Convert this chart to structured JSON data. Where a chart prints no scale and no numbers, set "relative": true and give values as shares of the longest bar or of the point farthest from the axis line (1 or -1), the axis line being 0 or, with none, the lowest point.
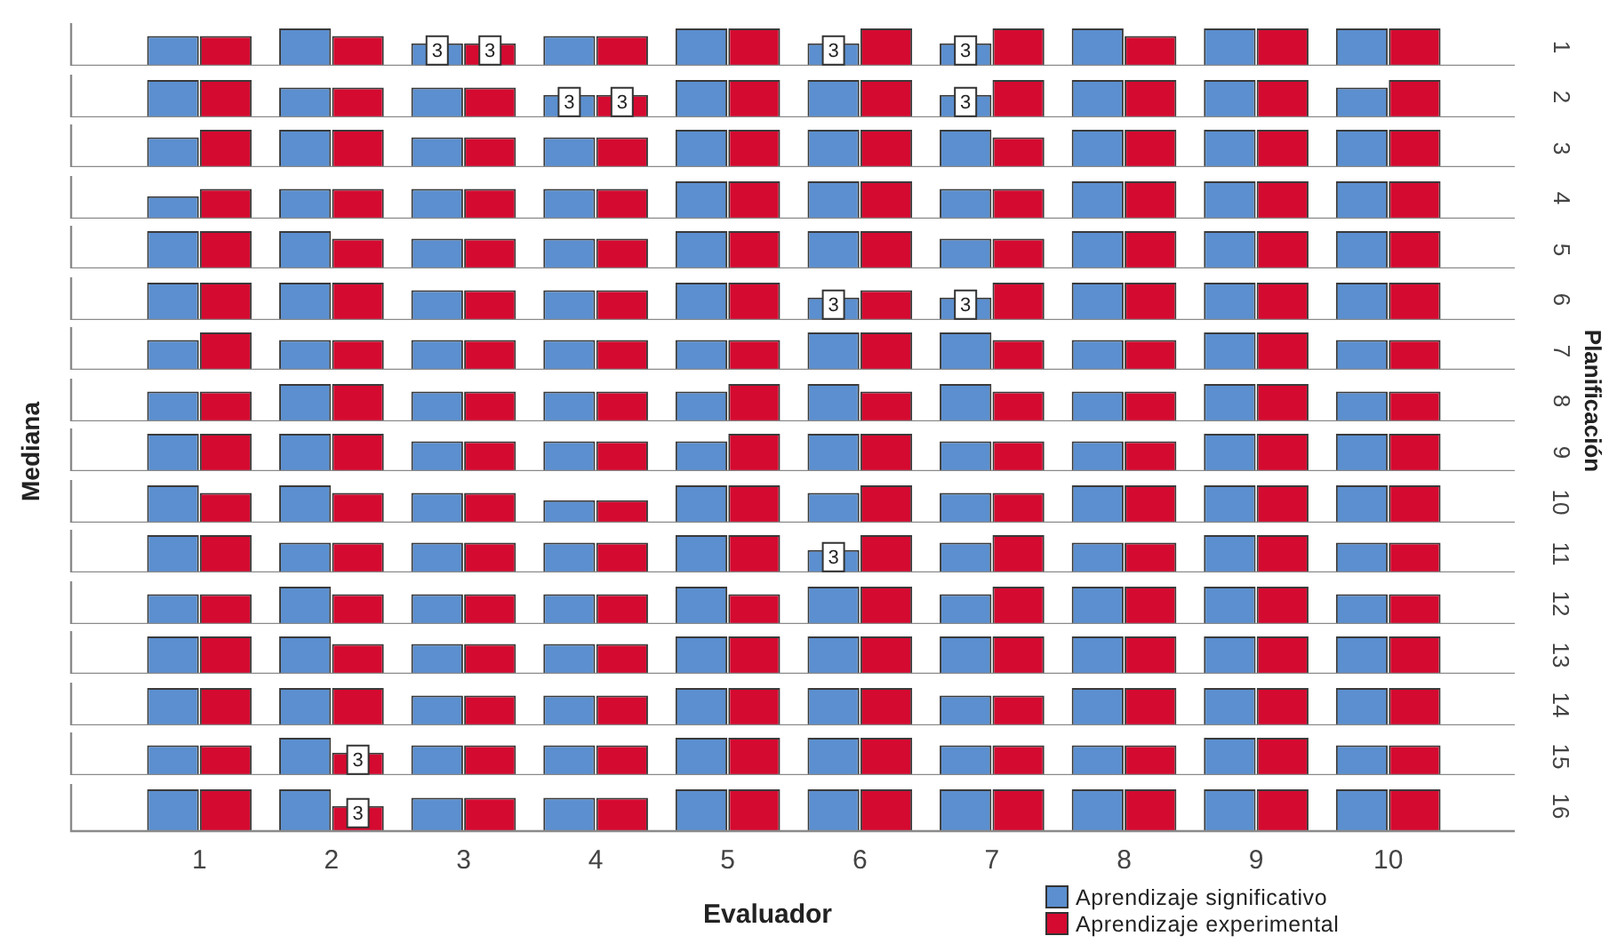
{
  "chart_data": [
    {
      "type": "bar",
      "categories": [
        null,
        null,
        null,
        null,
        null,
        null,
        null,
        null,
        null,
        null
      ],
      "tick_labels": false,
      "y2label": "1",
      "series": [
        {
          "color": "#5b8fcf",
          "values": [
            4,
            5,
            3,
            4,
            5,
            3,
            3,
            5,
            5,
            5
          ],
          "value_labels": [
            null,
            null,
            "3",
            null,
            null,
            "3",
            "3",
            null,
            null,
            null
          ]
        },
        {
          "color": "#d50a30",
          "values": [
            4,
            4,
            3,
            4,
            5,
            5,
            5,
            4,
            5,
            5
          ],
          "value_labels": [
            null,
            null,
            "3",
            null,
            null,
            null,
            null,
            null,
            null,
            null
          ]
        }
      ]
    },
    {
      "type": "bar",
      "categories": [
        null,
        null,
        null,
        null,
        null,
        null,
        null,
        null,
        null,
        null
      ],
      "tick_labels": false,
      "y2label": "2",
      "series": [
        {
          "color": "#5b8fcf",
          "values": [
            5,
            4,
            4,
            3,
            5,
            5,
            3,
            5,
            5,
            4
          ],
          "value_labels": [
            null,
            null,
            null,
            "3",
            null,
            null,
            "3",
            null,
            null,
            null
          ]
        },
        {
          "color": "#d50a30",
          "values": [
            5,
            4,
            4,
            3,
            5,
            5,
            5,
            5,
            5,
            5
          ],
          "value_labels": [
            null,
            null,
            null,
            "3",
            null,
            null,
            null,
            null,
            null,
            null
          ]
        }
      ]
    },
    {
      "type": "bar",
      "relative": true,
      "categories": [
        null,
        null,
        null,
        null,
        null,
        null,
        null,
        null,
        null,
        null
      ],
      "tick_labels": false,
      "y2label": "3",
      "series": [
        {
          "color": "#5b8fcf",
          "values": [
            0.8,
            1,
            0.8,
            0.8,
            1,
            1,
            1,
            1,
            1,
            1
          ]
        },
        {
          "color": "#d50a30",
          "values": [
            1,
            1,
            0.8,
            0.8,
            1,
            1,
            0.8,
            1,
            1,
            1
          ]
        }
      ]
    },
    {
      "type": "bar",
      "relative": true,
      "categories": [
        null,
        null,
        null,
        null,
        null,
        null,
        null,
        null,
        null,
        null
      ],
      "tick_labels": false,
      "y2label": "4",
      "series": [
        {
          "color": "#5b8fcf",
          "values": [
            0.6,
            0.8,
            0.8,
            0.8,
            1,
            1,
            0.8,
            1,
            1,
            1
          ]
        },
        {
          "color": "#d50a30",
          "values": [
            0.8,
            0.8,
            0.8,
            0.8,
            1,
            1,
            0.8,
            1,
            1,
            1
          ]
        }
      ]
    },
    {
      "type": "bar",
      "relative": true,
      "categories": [
        null,
        null,
        null,
        null,
        null,
        null,
        null,
        null,
        null,
        null
      ],
      "tick_labels": false,
      "y2label": "5",
      "series": [
        {
          "color": "#5b8fcf",
          "values": [
            1,
            1,
            0.8,
            0.8,
            1,
            1,
            0.8,
            1,
            1,
            1
          ]
        },
        {
          "color": "#d50a30",
          "values": [
            1,
            0.8,
            0.8,
            0.8,
            1,
            1,
            0.8,
            1,
            1,
            1
          ]
        }
      ]
    },
    {
      "type": "bar",
      "categories": [
        null,
        null,
        null,
        null,
        null,
        null,
        null,
        null,
        null,
        null
      ],
      "tick_labels": false,
      "y2label": "6",
      "series": [
        {
          "color": "#5b8fcf",
          "values": [
            5,
            5,
            4,
            4,
            5,
            3,
            3,
            5,
            5,
            5
          ],
          "value_labels": [
            null,
            null,
            null,
            null,
            null,
            "3",
            "3",
            null,
            null,
            null
          ]
        },
        {
          "color": "#d50a30",
          "values": [
            5,
            5,
            4,
            4,
            5,
            4,
            5,
            5,
            5,
            5
          ]
        }
      ]
    },
    {
      "type": "bar",
      "relative": true,
      "categories": [
        null,
        null,
        null,
        null,
        null,
        null,
        null,
        null,
        null,
        null
      ],
      "tick_labels": false,
      "y2label": "7",
      "series": [
        {
          "color": "#5b8fcf",
          "values": [
            0.8,
            0.8,
            0.8,
            0.8,
            0.8,
            1,
            1,
            0.8,
            1,
            0.8
          ]
        },
        {
          "color": "#d50a30",
          "values": [
            1,
            0.8,
            0.8,
            0.8,
            0.8,
            1,
            0.8,
            0.8,
            1,
            0.8
          ]
        }
      ]
    },
    {
      "type": "bar",
      "relative": true,
      "categories": [
        null,
        null,
        null,
        null,
        null,
        null,
        null,
        null,
        null,
        null
      ],
      "tick_labels": false,
      "y2label": "8",
      "annotations": [
        "Planificación"
      ],
      "series": [
        {
          "color": "#5b8fcf",
          "values": [
            0.8,
            1,
            0.8,
            0.8,
            0.8,
            1,
            1,
            0.8,
            1,
            0.8
          ]
        },
        {
          "color": "#d50a30",
          "values": [
            0.8,
            1,
            0.8,
            0.8,
            1,
            0.8,
            0.8,
            0.8,
            1,
            0.8
          ]
        }
      ]
    },
    {
      "type": "bar",
      "relative": true,
      "categories": [
        null,
        null,
        null,
        null,
        null,
        null,
        null,
        null,
        null,
        null
      ],
      "tick_labels": false,
      "y2label": "9",
      "ylabel": "Mediana",
      "series": [
        {
          "color": "#5b8fcf",
          "values": [
            1,
            1,
            0.8,
            0.8,
            0.8,
            1,
            0.8,
            0.8,
            1,
            1
          ]
        },
        {
          "color": "#d50a30",
          "values": [
            1,
            1,
            0.8,
            0.8,
            1,
            1,
            0.8,
            0.8,
            1,
            1
          ]
        }
      ]
    },
    {
      "type": "bar",
      "relative": true,
      "categories": [
        null,
        null,
        null,
        null,
        null,
        null,
        null,
        null,
        null,
        null
      ],
      "tick_labels": false,
      "y2label": "10",
      "series": [
        {
          "color": "#5b8fcf",
          "values": [
            1,
            1,
            0.8,
            0.6,
            1,
            0.8,
            0.8,
            1,
            1,
            1
          ]
        },
        {
          "color": "#d50a30",
          "values": [
            0.8,
            0.8,
            0.8,
            0.6,
            1,
            1,
            0.8,
            1,
            1,
            1
          ]
        }
      ]
    },
    {
      "type": "bar",
      "categories": [
        null,
        null,
        null,
        null,
        null,
        null,
        null,
        null,
        null,
        null
      ],
      "tick_labels": false,
      "y2label": "11",
      "series": [
        {
          "color": "#5b8fcf",
          "values": [
            5,
            4,
            4,
            4,
            5,
            3,
            4,
            4,
            5,
            4
          ],
          "value_labels": [
            null,
            null,
            null,
            null,
            null,
            "3",
            null,
            null,
            null,
            null
          ]
        },
        {
          "color": "#d50a30",
          "values": [
            5,
            4,
            4,
            4,
            5,
            5,
            5,
            4,
            5,
            4
          ]
        }
      ]
    },
    {
      "type": "bar",
      "relative": true,
      "categories": [
        null,
        null,
        null,
        null,
        null,
        null,
        null,
        null,
        null,
        null
      ],
      "tick_labels": false,
      "y2label": "12",
      "series": [
        {
          "color": "#5b8fcf",
          "values": [
            0.8,
            1,
            0.8,
            0.8,
            1,
            1,
            0.8,
            1,
            1,
            0.8
          ]
        },
        {
          "color": "#d50a30",
          "values": [
            0.8,
            0.8,
            0.8,
            0.8,
            0.8,
            1,
            1,
            1,
            1,
            0.8
          ]
        }
      ]
    },
    {
      "type": "bar",
      "relative": true,
      "categories": [
        null,
        null,
        null,
        null,
        null,
        null,
        null,
        null,
        null,
        null
      ],
      "tick_labels": false,
      "y2label": "13",
      "series": [
        {
          "color": "#5b8fcf",
          "values": [
            1,
            1,
            0.8,
            0.8,
            1,
            1,
            1,
            1,
            1,
            1
          ]
        },
        {
          "color": "#d50a30",
          "values": [
            1,
            0.8,
            0.8,
            0.8,
            1,
            1,
            1,
            1,
            1,
            1
          ]
        }
      ]
    },
    {
      "type": "bar",
      "relative": true,
      "categories": [
        null,
        null,
        null,
        null,
        null,
        null,
        null,
        null,
        null,
        null
      ],
      "tick_labels": false,
      "y2label": "14",
      "series": [
        {
          "color": "#5b8fcf",
          "values": [
            1,
            1,
            0.8,
            0.8,
            1,
            1,
            0.8,
            1,
            1,
            1
          ]
        },
        {
          "color": "#d50a30",
          "values": [
            1,
            1,
            0.8,
            0.8,
            1,
            1,
            0.8,
            1,
            1,
            1
          ]
        }
      ]
    },
    {
      "type": "bar",
      "categories": [
        null,
        null,
        null,
        null,
        null,
        null,
        null,
        null,
        null,
        null
      ],
      "tick_labels": false,
      "y2label": "15",
      "series": [
        {
          "color": "#5b8fcf",
          "values": [
            4,
            5,
            4,
            4,
            5,
            5,
            4,
            4,
            5,
            4
          ]
        },
        {
          "color": "#d50a30",
          "values": [
            4,
            3,
            4,
            4,
            5,
            5,
            4,
            4,
            5,
            4
          ],
          "value_labels": [
            null,
            "3",
            null,
            null,
            null,
            null,
            null,
            null,
            null,
            null
          ]
        }
      ]
    },
    {
      "type": "bar",
      "categories": [
        "1",
        "2",
        "3",
        "4",
        "5",
        "6",
        "7",
        "8",
        "9",
        "10"
      ],
      "tick_labels": "x",
      "y2label": "16",
      "xlabel": "Evaluador",
      "legend": "bottom right",
      "series": [
        {
          "name": "Aprendizaje significativo",
          "color": "#5b8fcf",
          "values": [
            5,
            5,
            4,
            4,
            5,
            5,
            5,
            5,
            5,
            5
          ]
        },
        {
          "name": "Aprendizaje experimental",
          "color": "#d50a30",
          "values": [
            5,
            3,
            4,
            4,
            5,
            5,
            5,
            5,
            5,
            5
          ],
          "value_labels": [
            null,
            "3",
            null,
            null,
            null,
            null,
            null,
            null,
            null,
            null
          ]
        }
      ]
    }
  ]
}
